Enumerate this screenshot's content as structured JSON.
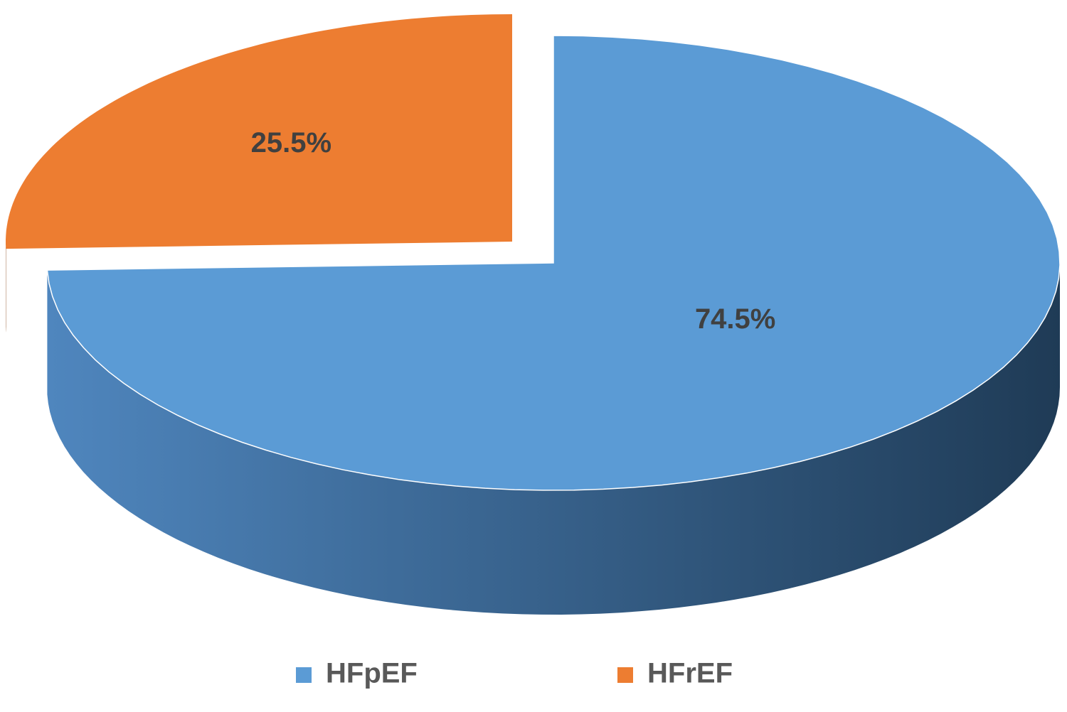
{
  "chart_data": {
    "type": "pie",
    "categories": [
      "HFpEF",
      "HFrEF"
    ],
    "values": [
      74.5,
      25.5
    ],
    "value_labels": [
      "74.5%",
      "25.5%"
    ],
    "colors": [
      "#5b9bd5",
      "#ed7d31"
    ],
    "legend": "bottom"
  }
}
